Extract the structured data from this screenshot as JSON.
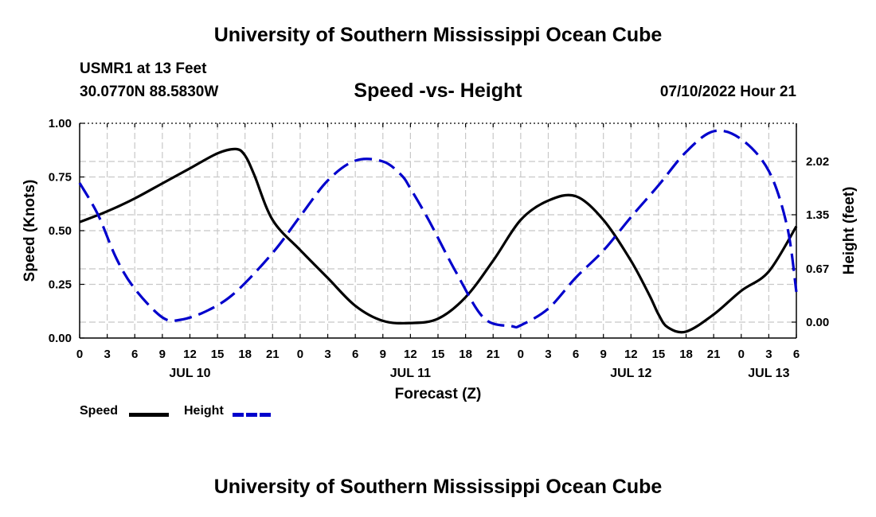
{
  "page": {
    "title": "University of Southern Mississippi Ocean Cube",
    "footer_title": "University of Southern Mississippi Ocean Cube",
    "station": "USMR1 at 13 Feet",
    "coords": "30.0770N  88.5830W",
    "subtitle": "Speed -vs- Height",
    "datetime": "07/10/2022 Hour 21"
  },
  "chart_data": {
    "type": "line",
    "title": "Speed -vs- Height",
    "xlabel": "Forecast (Z)",
    "ylabel": "Speed (Knots)",
    "y2label": "Height (feet)",
    "grid": true,
    "xlim": [
      0,
      78
    ],
    "ylim": [
      0,
      1.0
    ],
    "y2lim": [
      -0.2,
      2.5
    ],
    "x_ticks": [
      0,
      3,
      6,
      9,
      12,
      15,
      18,
      21,
      24,
      27,
      30,
      33,
      36,
      39,
      42,
      45,
      48,
      51,
      54,
      57,
      60,
      63,
      66,
      69,
      72,
      75,
      78
    ],
    "x_tick_labels": [
      "0",
      "3",
      "6",
      "9",
      "12",
      "15",
      "18",
      "21",
      "0",
      "3",
      "6",
      "9",
      "12",
      "15",
      "18",
      "21",
      "0",
      "3",
      "6",
      "9",
      "12",
      "15",
      "18",
      "21",
      "0",
      "3",
      "6"
    ],
    "date_labels": [
      {
        "x": 12,
        "label": "JUL 10"
      },
      {
        "x": 36,
        "label": "JUL 11"
      },
      {
        "x": 60,
        "label": "JUL 12"
      },
      {
        "x": 75,
        "label": "JUL 13"
      }
    ],
    "y_ticks": [
      0,
      0.25,
      0.5,
      0.75,
      1.0
    ],
    "y_tick_labels": [
      "0.00",
      "0.25",
      "0.50",
      "0.75",
      "1.00"
    ],
    "y2_ticks": [
      0,
      0.67,
      1.35,
      2.02
    ],
    "y2_tick_labels": [
      "0.00",
      "0.67",
      "1.35",
      "2.02"
    ],
    "legend": [
      {
        "label": "Speed",
        "color": "#000000",
        "dash": "solid"
      },
      {
        "label": "Height",
        "color": "#0000cc",
        "dash": "dashed"
      }
    ],
    "series": [
      {
        "name": "Speed",
        "axis": "left",
        "color": "#000000",
        "x": [
          0,
          3,
          6,
          9,
          12,
          15,
          17,
          18,
          19,
          21,
          24,
          27,
          30,
          33,
          36,
          39,
          42,
          45,
          48,
          51,
          54,
          57,
          60,
          62,
          63,
          64,
          66,
          69,
          72,
          75,
          78
        ],
        "values": [
          0.54,
          0.59,
          0.65,
          0.72,
          0.79,
          0.86,
          0.88,
          0.85,
          0.76,
          0.55,
          0.41,
          0.28,
          0.15,
          0.08,
          0.07,
          0.09,
          0.19,
          0.36,
          0.55,
          0.64,
          0.66,
          0.55,
          0.36,
          0.2,
          0.11,
          0.05,
          0.03,
          0.11,
          0.22,
          0.31,
          0.52
        ]
      },
      {
        "name": "Height",
        "axis": "right",
        "color": "#0000cc",
        "x": [
          0,
          2,
          4,
          6,
          9,
          11,
          14,
          17,
          21,
          24,
          27,
          30,
          33,
          35,
          36,
          38,
          41,
          44,
          47,
          48,
          51,
          54,
          57,
          60,
          63,
          66,
          69,
          72,
          75,
          77,
          78
        ],
        "values": [
          1.75,
          1.35,
          0.8,
          0.42,
          0.06,
          0.03,
          0.15,
          0.38,
          0.87,
          1.33,
          1.78,
          2.03,
          2.02,
          1.85,
          1.68,
          1.28,
          0.62,
          0.05,
          -0.05,
          -0.04,
          0.17,
          0.56,
          0.9,
          1.32,
          1.72,
          2.14,
          2.4,
          2.3,
          1.9,
          1.2,
          0.38
        ]
      }
    ]
  }
}
